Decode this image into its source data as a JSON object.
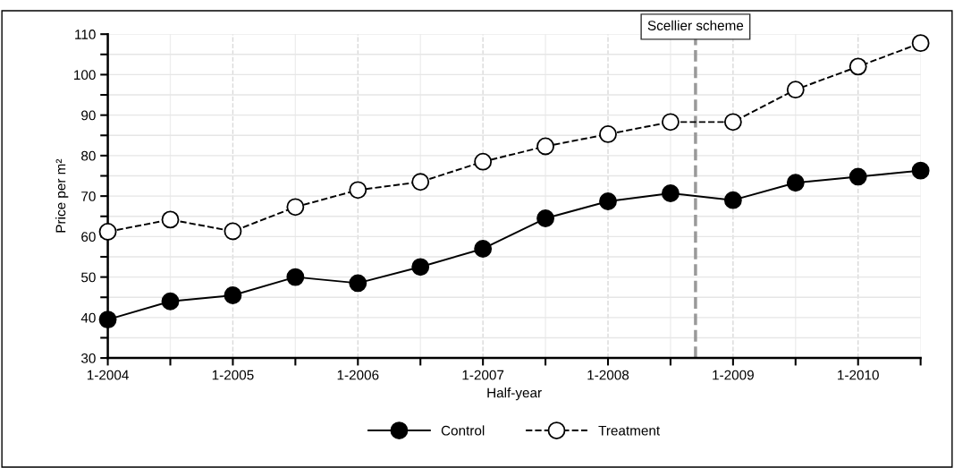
{
  "chart_data": {
    "type": "line",
    "xlabel": "Half-year",
    "ylabel": "Price per m²",
    "categories": [
      "1-2004",
      null,
      "1-2005",
      null,
      "1-2006",
      null,
      "1-2007",
      null,
      "1-2008",
      null,
      "1-2009",
      null,
      "1-2010",
      null
    ],
    "series": [
      {
        "name": "Control",
        "color": "#000000",
        "line_style": "solid",
        "marker": "circle",
        "values": [
          39.5,
          44,
          45.5,
          50,
          48.5,
          52.5,
          57,
          64.5,
          68.7,
          70.7,
          69,
          73.3,
          74.8,
          76.3
        ]
      },
      {
        "name": "Treatment",
        "color": "#000000",
        "line_style": "dashed",
        "marker": "circle",
        "values": [
          61.2,
          64.2,
          61.3,
          67.3,
          71.5,
          73.5,
          78.5,
          82.3,
          85.3,
          88.3,
          88.3,
          96.3,
          102,
          107.8
        ]
      }
    ],
    "ylim": [
      30,
      110
    ],
    "yticks": [
      30,
      {
        "value": 35,
        "label": null
      },
      40,
      {
        "value": 45,
        "label": null
      },
      50,
      {
        "value": 55,
        "label": null
      },
      60,
      {
        "value": 65,
        "label": null
      },
      70,
      {
        "value": 75,
        "label": null
      },
      80,
      {
        "value": 85,
        "label": null
      },
      90,
      {
        "value": 95,
        "label": null
      },
      100,
      {
        "value": 105,
        "label": null
      },
      110
    ],
    "annotations": [
      "Scellier scheme"
    ],
    "grid": true,
    "legend": "bottom"
  }
}
